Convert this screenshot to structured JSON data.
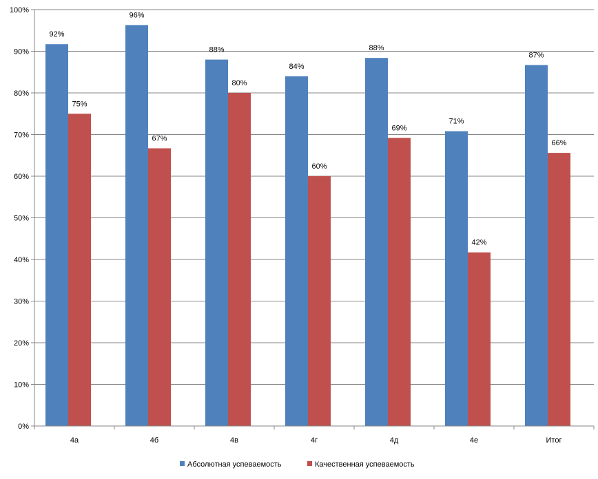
{
  "chart_data": {
    "type": "bar",
    "categories": [
      "4а",
      "4б",
      "4в",
      "4г",
      "4д",
      "4е",
      "Итог"
    ],
    "series": [
      {
        "name": "Абсолютная успеваемость",
        "color": "#4F81BD",
        "values": [
          0.917,
          0.963,
          0.88,
          0.84,
          0.884,
          0.708,
          0.867
        ],
        "labels": [
          "92%",
          "96%",
          "88%",
          "84%",
          "88%",
          "71%",
          "87%"
        ]
      },
      {
        "name": "Качественная успеваемость",
        "color": "#C0504D",
        "values": [
          0.75,
          0.667,
          0.8,
          0.6,
          0.692,
          0.417,
          0.656
        ],
        "labels": [
          "75%",
          "67%",
          "80%",
          "60%",
          "69%",
          "42%",
          "66%"
        ]
      }
    ],
    "yticks": [
      "0%",
      "10%",
      "20%",
      "30%",
      "40%",
      "50%",
      "60%",
      "70%",
      "80%",
      "90%",
      "100%"
    ],
    "ylim": [
      0,
      1
    ],
    "grid": true,
    "legend_position": "bottom",
    "xlabel": "",
    "ylabel": "",
    "title": ""
  }
}
